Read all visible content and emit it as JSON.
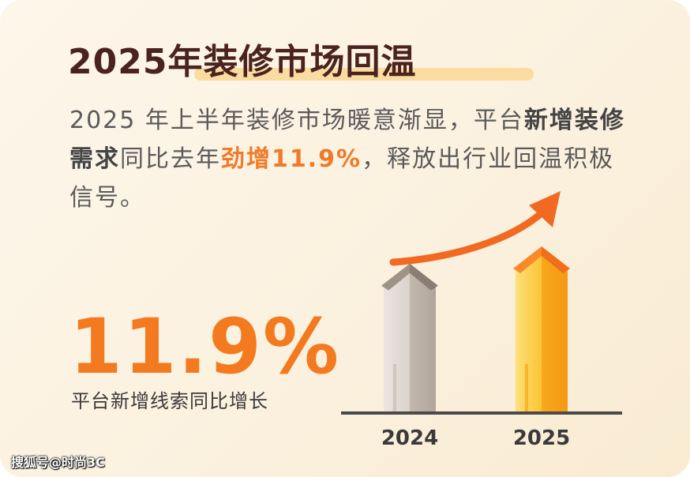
{
  "title": "2025年装修市场回温",
  "description": {
    "part1": "2025 年上半年装修市场暖意渐显，平台",
    "strong1": "新增装修需求",
    "part2": "同比去年",
    "highlight": "劲增11.9%",
    "part3": "，释放出行业回温积极信号。"
  },
  "big_stat": {
    "value": "11.9%",
    "caption": "平台新增线索同比增长"
  },
  "chart_data": {
    "type": "bar",
    "categories": [
      "2024",
      "2025"
    ],
    "values": [
      100,
      111.9
    ],
    "title": "",
    "xlabel": "",
    "ylabel": "",
    "grid": false,
    "bar_style": "building",
    "trend_arrow": true,
    "colors": {
      "2024": "#d4ccc4",
      "2025": "#f9b21f",
      "arrow": "#f06a22",
      "axis": "#444444"
    }
  },
  "watermark": "搜狐号@时尚3C"
}
